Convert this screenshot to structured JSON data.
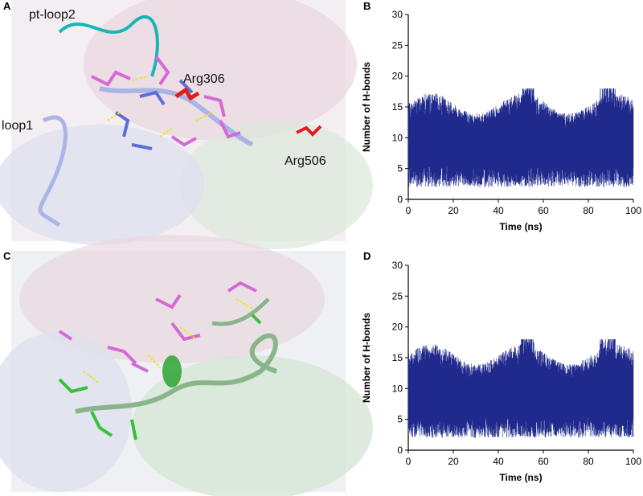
{
  "panels": {
    "a": {
      "letter": "A",
      "labels": {
        "pt_loop2": "pt-loop2",
        "arg306": "Arg306",
        "loop1": "loop1",
        "arg506": "Arg506"
      }
    },
    "b": {
      "letter": "B"
    },
    "c": {
      "letter": "C"
    },
    "d": {
      "letter": "D"
    }
  },
  "colors": {
    "trace": "#1f2a8c",
    "pink_ribbon": "#e6c9d3",
    "magenta_stick": "#d46ad4",
    "blue_stick": "#5b6fd6",
    "cyan_loop": "#19b5b5",
    "lilac_loop": "#aab4e6",
    "red_stick": "#e21b1b",
    "green_stick": "#35c13a",
    "hbond_yellow": "#f2e21a"
  },
  "chart_data": [
    {
      "type": "line",
      "panel": "B",
      "xlabel": "Time (ns)",
      "ylabel": "Number of H-bonds",
      "xlim": [
        0,
        100
      ],
      "ylim": [
        0,
        30
      ],
      "xticks": [
        "0",
        "20",
        "40",
        "60",
        "80",
        "100"
      ],
      "yticks": [
        "0",
        "5",
        "10",
        "15",
        "20",
        "25",
        "30"
      ],
      "grid": false,
      "series_summary": {
        "x_start": 0,
        "x_end": 100,
        "typical_min": 4,
        "typical_max": 15,
        "peak_max": 18,
        "mean": 9
      }
    },
    {
      "type": "line",
      "panel": "D",
      "xlabel": "Time (ns)",
      "ylabel": "Number of H-bonds",
      "xlim": [
        0,
        100
      ],
      "ylim": [
        0,
        30
      ],
      "xticks": [
        "0",
        "20",
        "40",
        "60",
        "80",
        "100"
      ],
      "yticks": [
        "0",
        "5",
        "10",
        "15",
        "20",
        "25",
        "30"
      ],
      "grid": false,
      "series_summary": {
        "x_start": 0,
        "x_end": 100,
        "typical_min": 4,
        "typical_max": 15,
        "peak_max": 18,
        "mean": 9
      }
    }
  ]
}
